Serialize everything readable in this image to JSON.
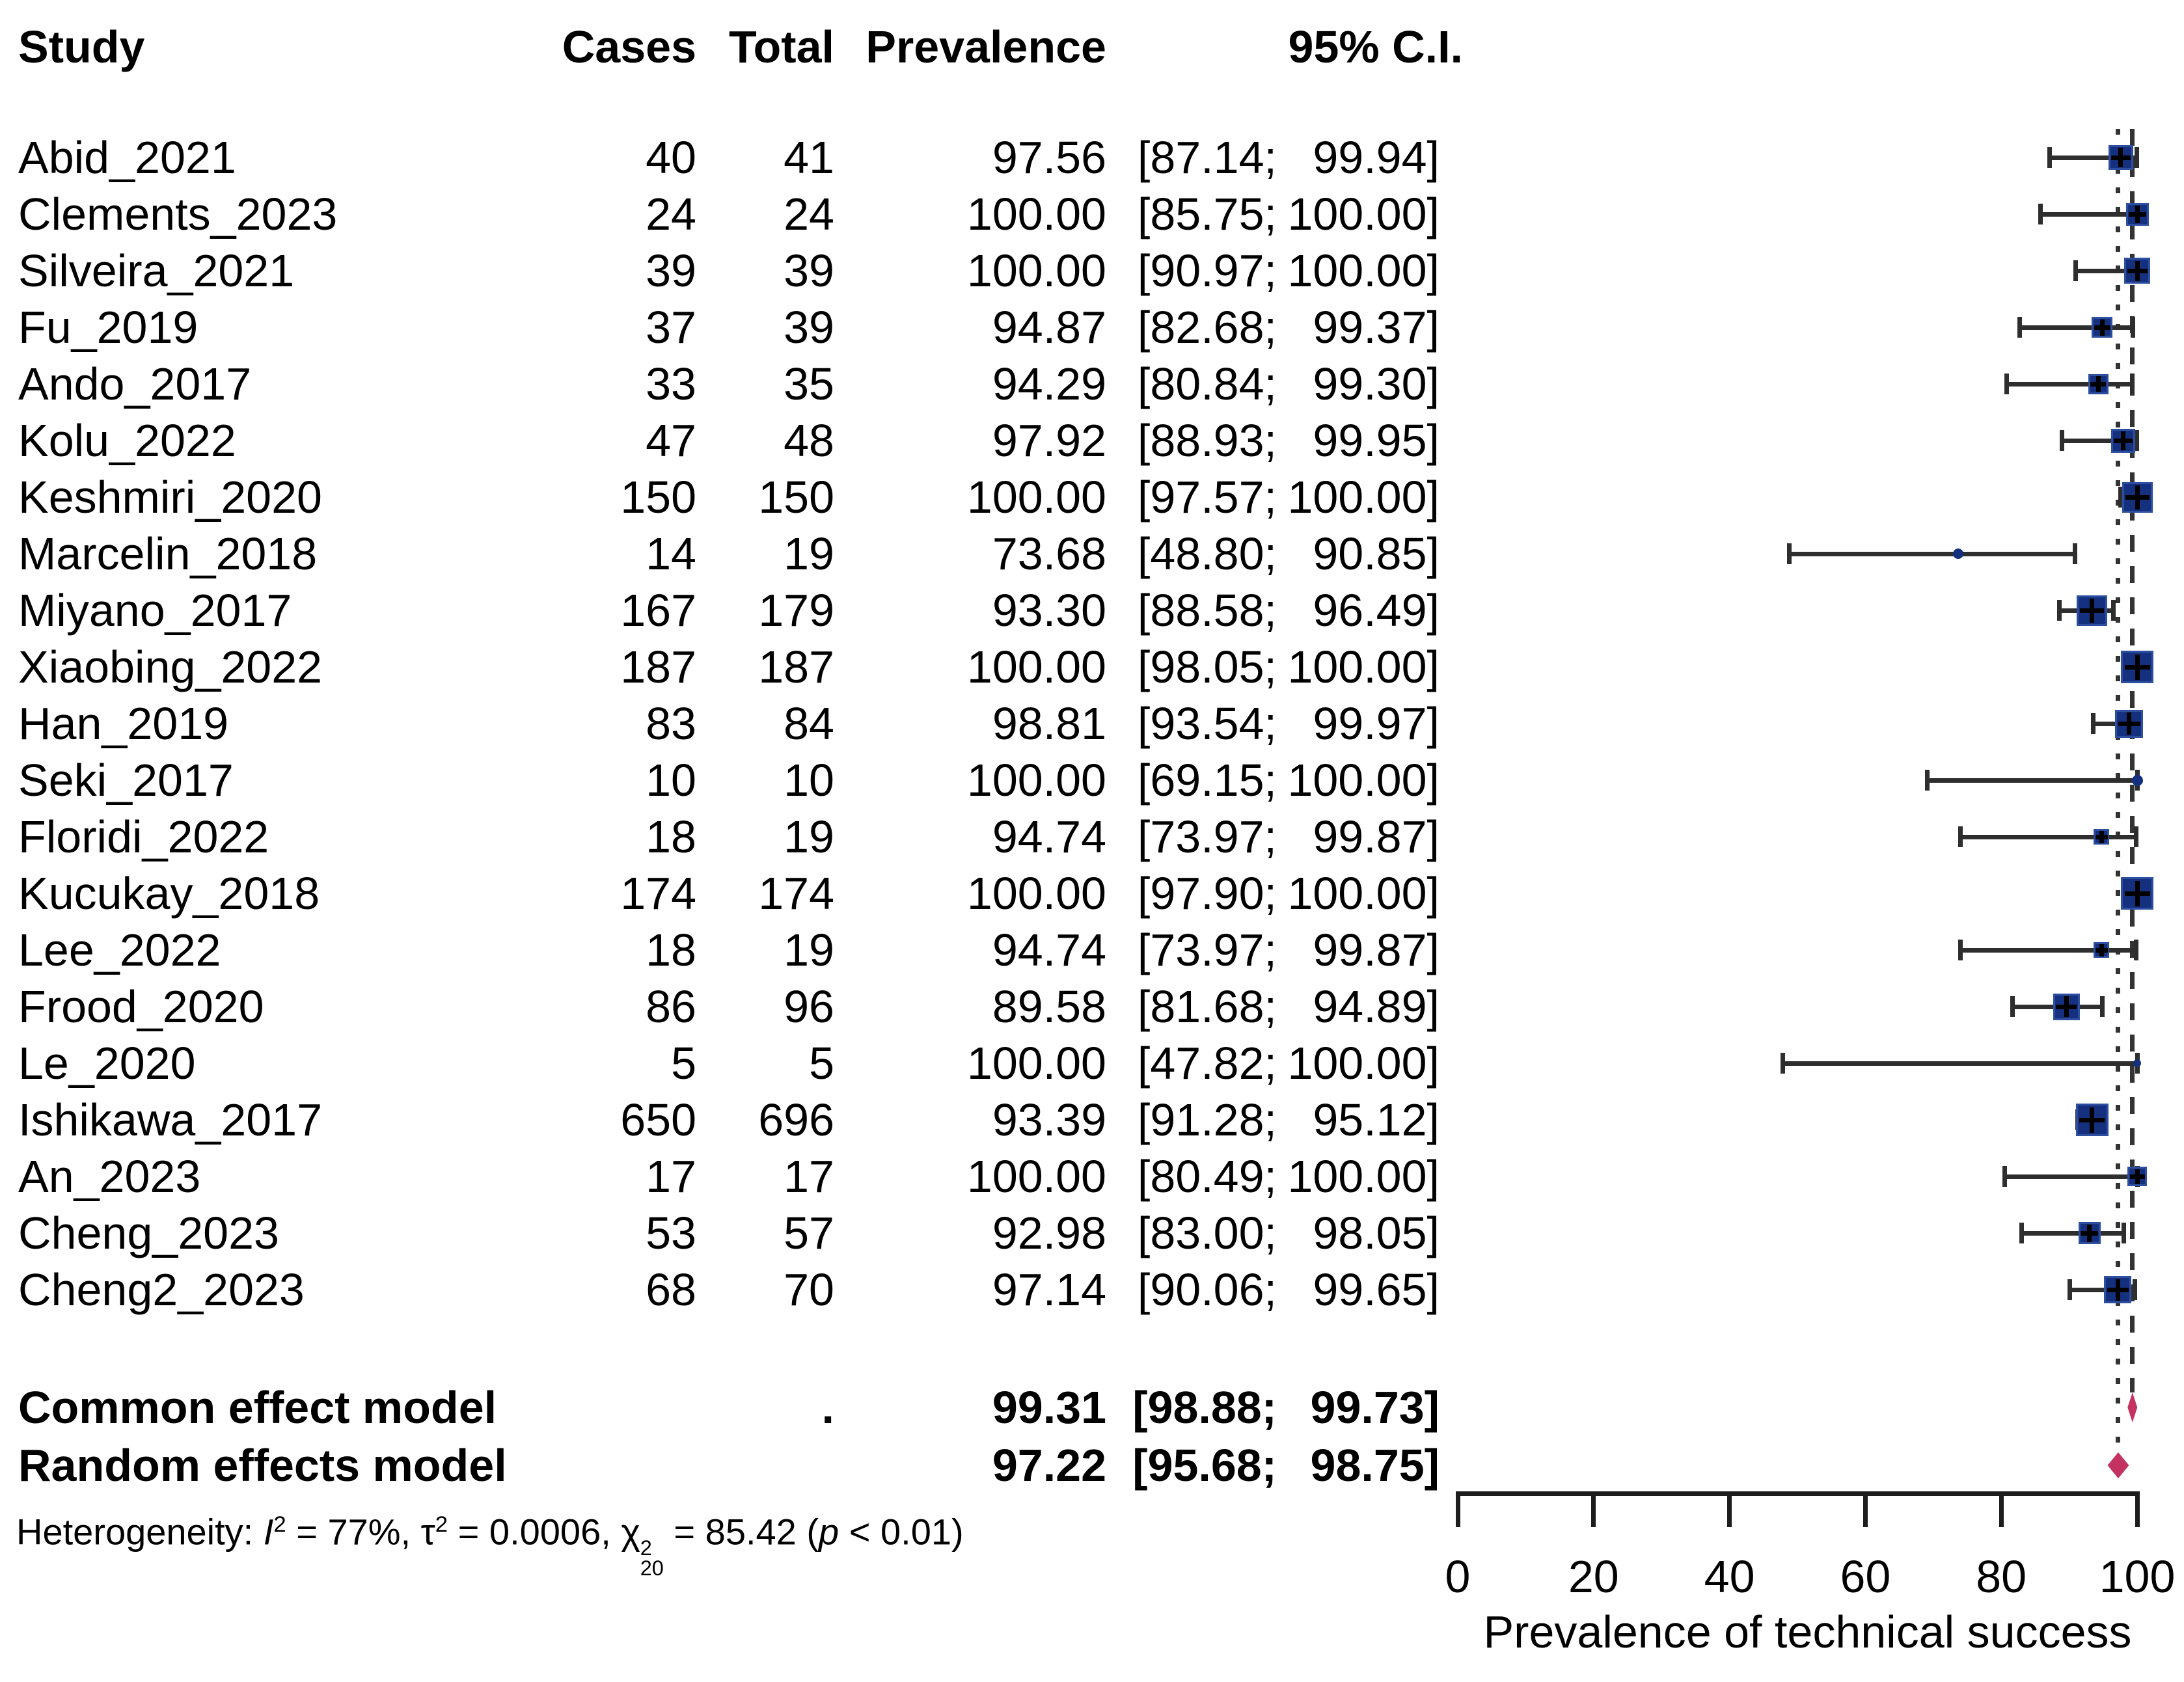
{
  "figure": {
    "columns": {
      "study": "Study",
      "cases": "Cases",
      "total": "Total",
      "prevalence": "Prevalence",
      "ci": "95% C.I."
    }
  },
  "chart_data": {
    "type": "forest",
    "title": "",
    "xlabel": "Prevalence of technical success",
    "xlim": [
      0,
      100
    ],
    "xticks": [
      0,
      20,
      40,
      60,
      80,
      100
    ],
    "grid": false,
    "legend": "none",
    "studies": [
      {
        "study": "Abid_2021",
        "cases": 40,
        "total": 41,
        "prevalence": "97.56",
        "ci_text": "[87.14; 99.94]",
        "ci_lower": 87.14,
        "ci_upper": 99.94,
        "marker_size": 38
      },
      {
        "study": "Clements_2023",
        "cases": 24,
        "total": 24,
        "prevalence": "100.00",
        "ci_text": "[85.75; 100.00]",
        "ci_lower": 85.75,
        "ci_upper": 100.0,
        "marker_size": 35
      },
      {
        "study": "Silveira_2021",
        "cases": 39,
        "total": 39,
        "prevalence": "100.00",
        "ci_text": "[90.97; 100.00]",
        "ci_lower": 90.97,
        "ci_upper": 100.0,
        "marker_size": 40
      },
      {
        "study": "Fu_2019",
        "cases": 37,
        "total": 39,
        "prevalence": "94.87",
        "ci_text": "[82.68; 99.37]",
        "ci_lower": 82.68,
        "ci_upper": 99.37,
        "marker_size": 32
      },
      {
        "study": "Ando_2017",
        "cases": 33,
        "total": 35,
        "prevalence": "94.29",
        "ci_text": "[80.84; 99.30]",
        "ci_lower": 80.84,
        "ci_upper": 99.3,
        "marker_size": 31
      },
      {
        "study": "Kolu_2022",
        "cases": 47,
        "total": 48,
        "prevalence": "97.92",
        "ci_text": "[88.93; 99.95]",
        "ci_lower": 88.93,
        "ci_upper": 99.95,
        "marker_size": 37
      },
      {
        "study": "Keshmiri_2020",
        "cases": 150,
        "total": 150,
        "prevalence": "100.00",
        "ci_text": "[97.57; 100.00]",
        "ci_lower": 97.57,
        "ci_upper": 100.0,
        "marker_size": 47
      },
      {
        "study": "Marcelin_2018",
        "cases": 14,
        "total": 19,
        "prevalence": "73.68",
        "ci_text": "[48.80; 90.85]",
        "ci_lower": 48.8,
        "ci_upper": 90.85,
        "marker_size": 16
      },
      {
        "study": "Miyano_2017",
        "cases": 167,
        "total": 179,
        "prevalence": "93.30",
        "ci_text": "[88.58; 96.49]",
        "ci_lower": 88.58,
        "ci_upper": 96.49,
        "marker_size": 47
      },
      {
        "study": "Xiaobing_2022",
        "cases": 187,
        "total": 187,
        "prevalence": "100.00",
        "ci_text": "[98.05; 100.00]",
        "ci_lower": 98.05,
        "ci_upper": 100.0,
        "marker_size": 50
      },
      {
        "study": "Han_2019",
        "cases": 83,
        "total": 84,
        "prevalence": "98.81",
        "ci_text": "[93.54; 99.97]",
        "ci_lower": 93.54,
        "ci_upper": 99.97,
        "marker_size": 43
      },
      {
        "study": "Seki_2017",
        "cases": 10,
        "total": 10,
        "prevalence": "100.00",
        "ci_text": "[69.15; 100.00]",
        "ci_lower": 69.15,
        "ci_upper": 100.0,
        "marker_size": 17
      },
      {
        "study": "Floridi_2022",
        "cases": 18,
        "total": 19,
        "prevalence": "94.74",
        "ci_text": "[73.97; 99.87]",
        "ci_lower": 73.97,
        "ci_upper": 99.87,
        "marker_size": 24
      },
      {
        "study": "Kucukay_2018",
        "cases": 174,
        "total": 174,
        "prevalence": "100.00",
        "ci_text": "[97.90; 100.00]",
        "ci_lower": 97.9,
        "ci_upper": 100.0,
        "marker_size": 50
      },
      {
        "study": "Lee_2022",
        "cases": 18,
        "total": 19,
        "prevalence": "94.74",
        "ci_text": "[73.97; 99.87]",
        "ci_lower": 73.97,
        "ci_upper": 99.87,
        "marker_size": 24
      },
      {
        "study": "Frood_2020",
        "cases": 86,
        "total": 96,
        "prevalence": "89.58",
        "ci_text": "[81.68; 94.89]",
        "ci_lower": 81.68,
        "ci_upper": 94.89,
        "marker_size": 41
      },
      {
        "study": "Le_2020",
        "cases": 5,
        "total": 5,
        "prevalence": "100.00",
        "ci_text": "[47.82; 100.00]",
        "ci_lower": 47.82,
        "ci_upper": 100.0,
        "marker_size": 12
      },
      {
        "study": "Ishikawa_2017",
        "cases": 650,
        "total": 696,
        "prevalence": "93.39",
        "ci_text": "[91.28; 95.12]",
        "ci_lower": 91.28,
        "ci_upper": 95.12,
        "marker_size": 50
      },
      {
        "study": "An_2023",
        "cases": 17,
        "total": 17,
        "prevalence": "100.00",
        "ci_text": "[80.49; 100.00]",
        "ci_lower": 80.49,
        "ci_upper": 100.0,
        "marker_size": 30
      },
      {
        "study": "Cheng_2023",
        "cases": 53,
        "total": 57,
        "prevalence": "92.98",
        "ci_text": "[83.00; 98.05]",
        "ci_lower": 83.0,
        "ci_upper": 98.05,
        "marker_size": 34
      },
      {
        "study": "Cheng2_2023",
        "cases": 68,
        "total": 70,
        "prevalence": "97.14",
        "ci_text": "[90.06; 99.65]",
        "ci_lower": 90.06,
        "ci_upper": 99.65,
        "marker_size": 42
      }
    ],
    "models": [
      {
        "label": "Common effect model",
        "total": ".",
        "prevalence": "99.31",
        "ci_text": "[98.88; 99.73]",
        "estimate": 99.31,
        "ci_lower": 98.88,
        "ci_upper": 99.73,
        "ref_line": "dashed",
        "diamond": {
          "w": 15,
          "h": 46
        }
      },
      {
        "label": "Random effects model",
        "total": "",
        "prevalence": "97.22",
        "ci_text": "[95.68; 98.75]",
        "estimate": 97.22,
        "ci_lower": 95.68,
        "ci_upper": 98.75,
        "ref_line": "dotted",
        "diamond": {
          "w": 33,
          "h": 40
        }
      }
    ],
    "heterogeneity_parts": [
      {
        "t": "Heterogeneity: "
      },
      {
        "t": "I",
        "italic": true
      },
      {
        "sup": "2"
      },
      {
        "t": " = 77%, τ"
      },
      {
        "sup": "2"
      },
      {
        "t": " = 0.0006, χ"
      },
      {
        "sup": "2",
        "sub": "20"
      },
      {
        "t": " = 85.42 ("
      },
      {
        "t": "p",
        "italic": true
      },
      {
        "t": " < 0.01)"
      }
    ],
    "colors": {
      "square": "#14307f",
      "square_border": "#2e4fa0",
      "ci_line": "#2e2e2e",
      "cross": "#000000",
      "diamond": "#c43261",
      "ref_line": "#333333",
      "axis": "#1d1d1d",
      "text": "#000000"
    }
  }
}
